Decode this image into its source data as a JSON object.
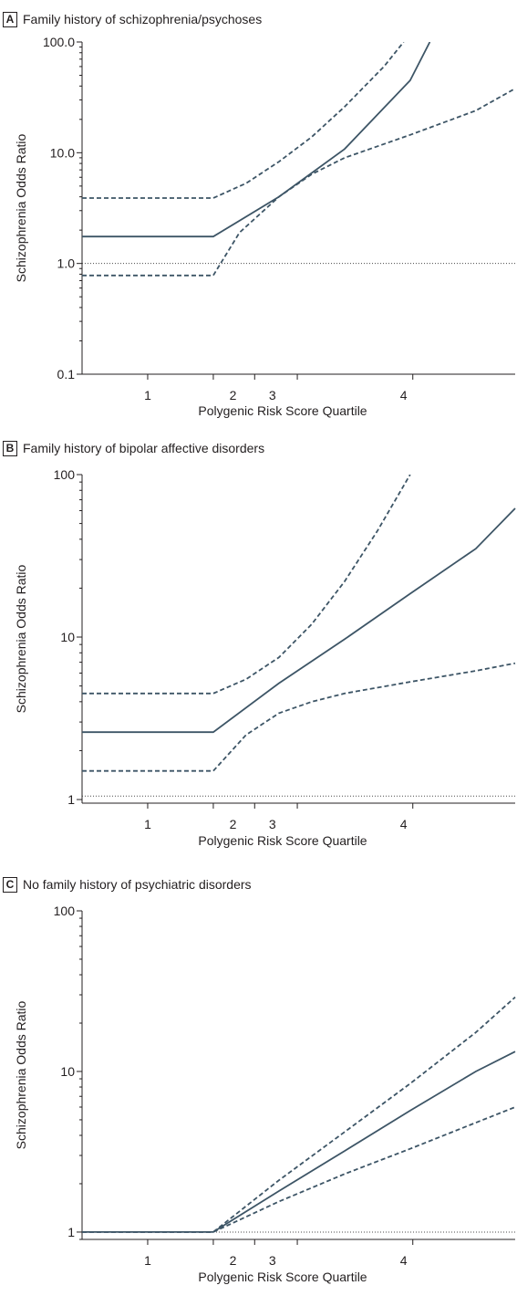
{
  "colors": {
    "line": "#3d5566",
    "reference": "#4a4a4a",
    "axis": "#231f20"
  },
  "chart_data": [
    {
      "type": "line",
      "panel_letter": "A",
      "title": "Family history of schizophrenia/psychoses",
      "xlabel": "Polygenic Risk Score Quartile",
      "ylabel": "Schizophrenia Odds Ratio",
      "yscale": "log",
      "ylim": [
        0.1,
        100
      ],
      "yticks": [
        0.1,
        1,
        10,
        100
      ],
      "ytick_labels": [
        "0.1",
        "1.0",
        "10.0",
        "100.0"
      ],
      "xlim": [
        -2.0,
        4.6
      ],
      "xtick_values": [
        -1.0,
        0.0,
        0.63,
        1.28,
        3.04
      ],
      "xtick_labels": [
        "1",
        "2",
        "3",
        "4"
      ],
      "xtick_label_positions": [
        -1.0,
        0.3,
        0.9,
        2.9
      ],
      "reference_line": 1,
      "series": [
        {
          "style": "solid",
          "x": [
            -2.0,
            0.0,
            1.0,
            2.0,
            3.0,
            3.3
          ],
          "y": [
            1.75,
            1.75,
            4.0,
            10.8,
            45,
            100
          ]
        },
        {
          "style": "dashed",
          "x": [
            -2.0,
            0.0,
            0.5,
            1.0,
            1.5,
            2.0,
            2.6,
            2.9
          ],
          "y": [
            3.9,
            3.9,
            5.3,
            8.3,
            13.9,
            26,
            60,
            100
          ]
        },
        {
          "style": "dashed",
          "x": [
            -2.0,
            0.0,
            0.4,
            1.0,
            1.5,
            2.0,
            3.0,
            4.0,
            4.6
          ],
          "y": [
            0.78,
            0.78,
            1.9,
            4.0,
            6.4,
            9.0,
            14.5,
            24,
            38
          ]
        }
      ]
    },
    {
      "type": "line",
      "panel_letter": "B",
      "title": "Family history of bipolar affective disorders",
      "xlabel": "Polygenic Risk Score Quartile",
      "ylabel": "Schizophrenia Odds Ratio",
      "yscale": "log",
      "ylim": [
        0.95,
        100
      ],
      "yticks": [
        1,
        10,
        100
      ],
      "ytick_labels": [
        "1",
        "10",
        "100"
      ],
      "xlim": [
        -2.0,
        4.6
      ],
      "xtick_values": [
        -1.0,
        0.0,
        0.63,
        1.28,
        3.04
      ],
      "xtick_labels": [
        "1",
        "2",
        "3",
        "4"
      ],
      "xtick_label_positions": [
        -1.0,
        0.3,
        0.9,
        2.9
      ],
      "reference_line": 1.05,
      "series": [
        {
          "style": "solid",
          "x": [
            -2.0,
            0.0,
            1.0,
            2.0,
            3.0,
            4.0,
            4.6
          ],
          "y": [
            2.6,
            2.6,
            5.2,
            9.7,
            18.5,
            35,
            62
          ]
        },
        {
          "style": "dashed",
          "x": [
            -2.0,
            0.0,
            0.5,
            1.0,
            1.5,
            2.0,
            2.5,
            3.0
          ],
          "y": [
            4.5,
            4.5,
            5.5,
            7.5,
            12,
            22,
            45,
            100
          ]
        },
        {
          "style": "dashed",
          "x": [
            -2.0,
            0.0,
            0.5,
            1.0,
            1.5,
            2.0,
            3.0,
            4.0,
            4.6
          ],
          "y": [
            1.5,
            1.5,
            2.5,
            3.4,
            4.0,
            4.5,
            5.3,
            6.2,
            6.9
          ]
        }
      ]
    },
    {
      "type": "line",
      "panel_letter": "C",
      "title": "No family history of psychiatric disorders",
      "xlabel": "Polygenic Risk Score Quartile",
      "ylabel": "Schizophrenia Odds Ratio",
      "yscale": "log",
      "ylim": [
        0.9,
        100
      ],
      "yticks": [
        1,
        10,
        100
      ],
      "ytick_labels": [
        "1",
        "10",
        "100"
      ],
      "xlim": [
        -2.0,
        4.6
      ],
      "xtick_values": [
        -1.0,
        0.0,
        0.63,
        1.28,
        3.04
      ],
      "xtick_labels": [
        "1",
        "2",
        "3",
        "4"
      ],
      "xtick_label_positions": [
        -1.0,
        0.3,
        0.9,
        2.9
      ],
      "reference_line": 1,
      "series": [
        {
          "style": "solid",
          "x": [
            -2.0,
            0.0,
            1.0,
            2.0,
            3.0,
            4.0,
            4.6
          ],
          "y": [
            1,
            1,
            1.8,
            3.2,
            5.7,
            10.0,
            13.3
          ]
        },
        {
          "style": "dashed",
          "x": [
            -2.0,
            0.0,
            1.0,
            2.0,
            3.0,
            4.0,
            4.6
          ],
          "y": [
            1,
            1,
            2.1,
            4.2,
            8.4,
            17.5,
            29
          ]
        },
        {
          "style": "dashed",
          "x": [
            -2.0,
            0.0,
            1.0,
            2.0,
            3.0,
            4.0,
            4.6
          ],
          "y": [
            1,
            1,
            1.55,
            2.3,
            3.3,
            4.8,
            6.0
          ]
        }
      ]
    }
  ]
}
